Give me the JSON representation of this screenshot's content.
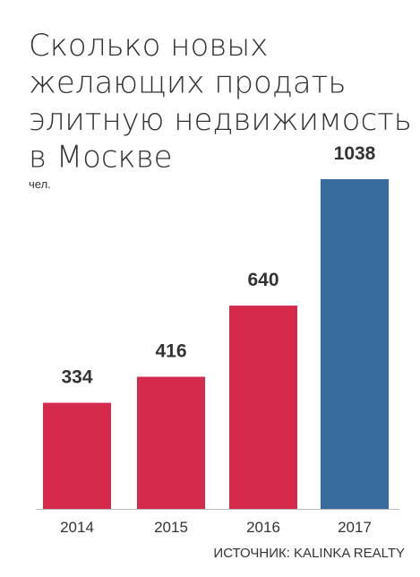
{
  "chart_data": {
    "type": "bar",
    "title": [
      "Сколько новых",
      "желающих продать",
      "элитную недвижимость",
      "в Москве"
    ],
    "unit": "чел.",
    "source": "ИСТОЧНИК: KALINKA REALTY",
    "categories": [
      "2014",
      "2015",
      "2016",
      "2017"
    ],
    "values": [
      334,
      416,
      640,
      1038
    ],
    "colors": [
      "#d42a4b",
      "#d42a4b",
      "#d42a4b",
      "#386b9e"
    ]
  }
}
